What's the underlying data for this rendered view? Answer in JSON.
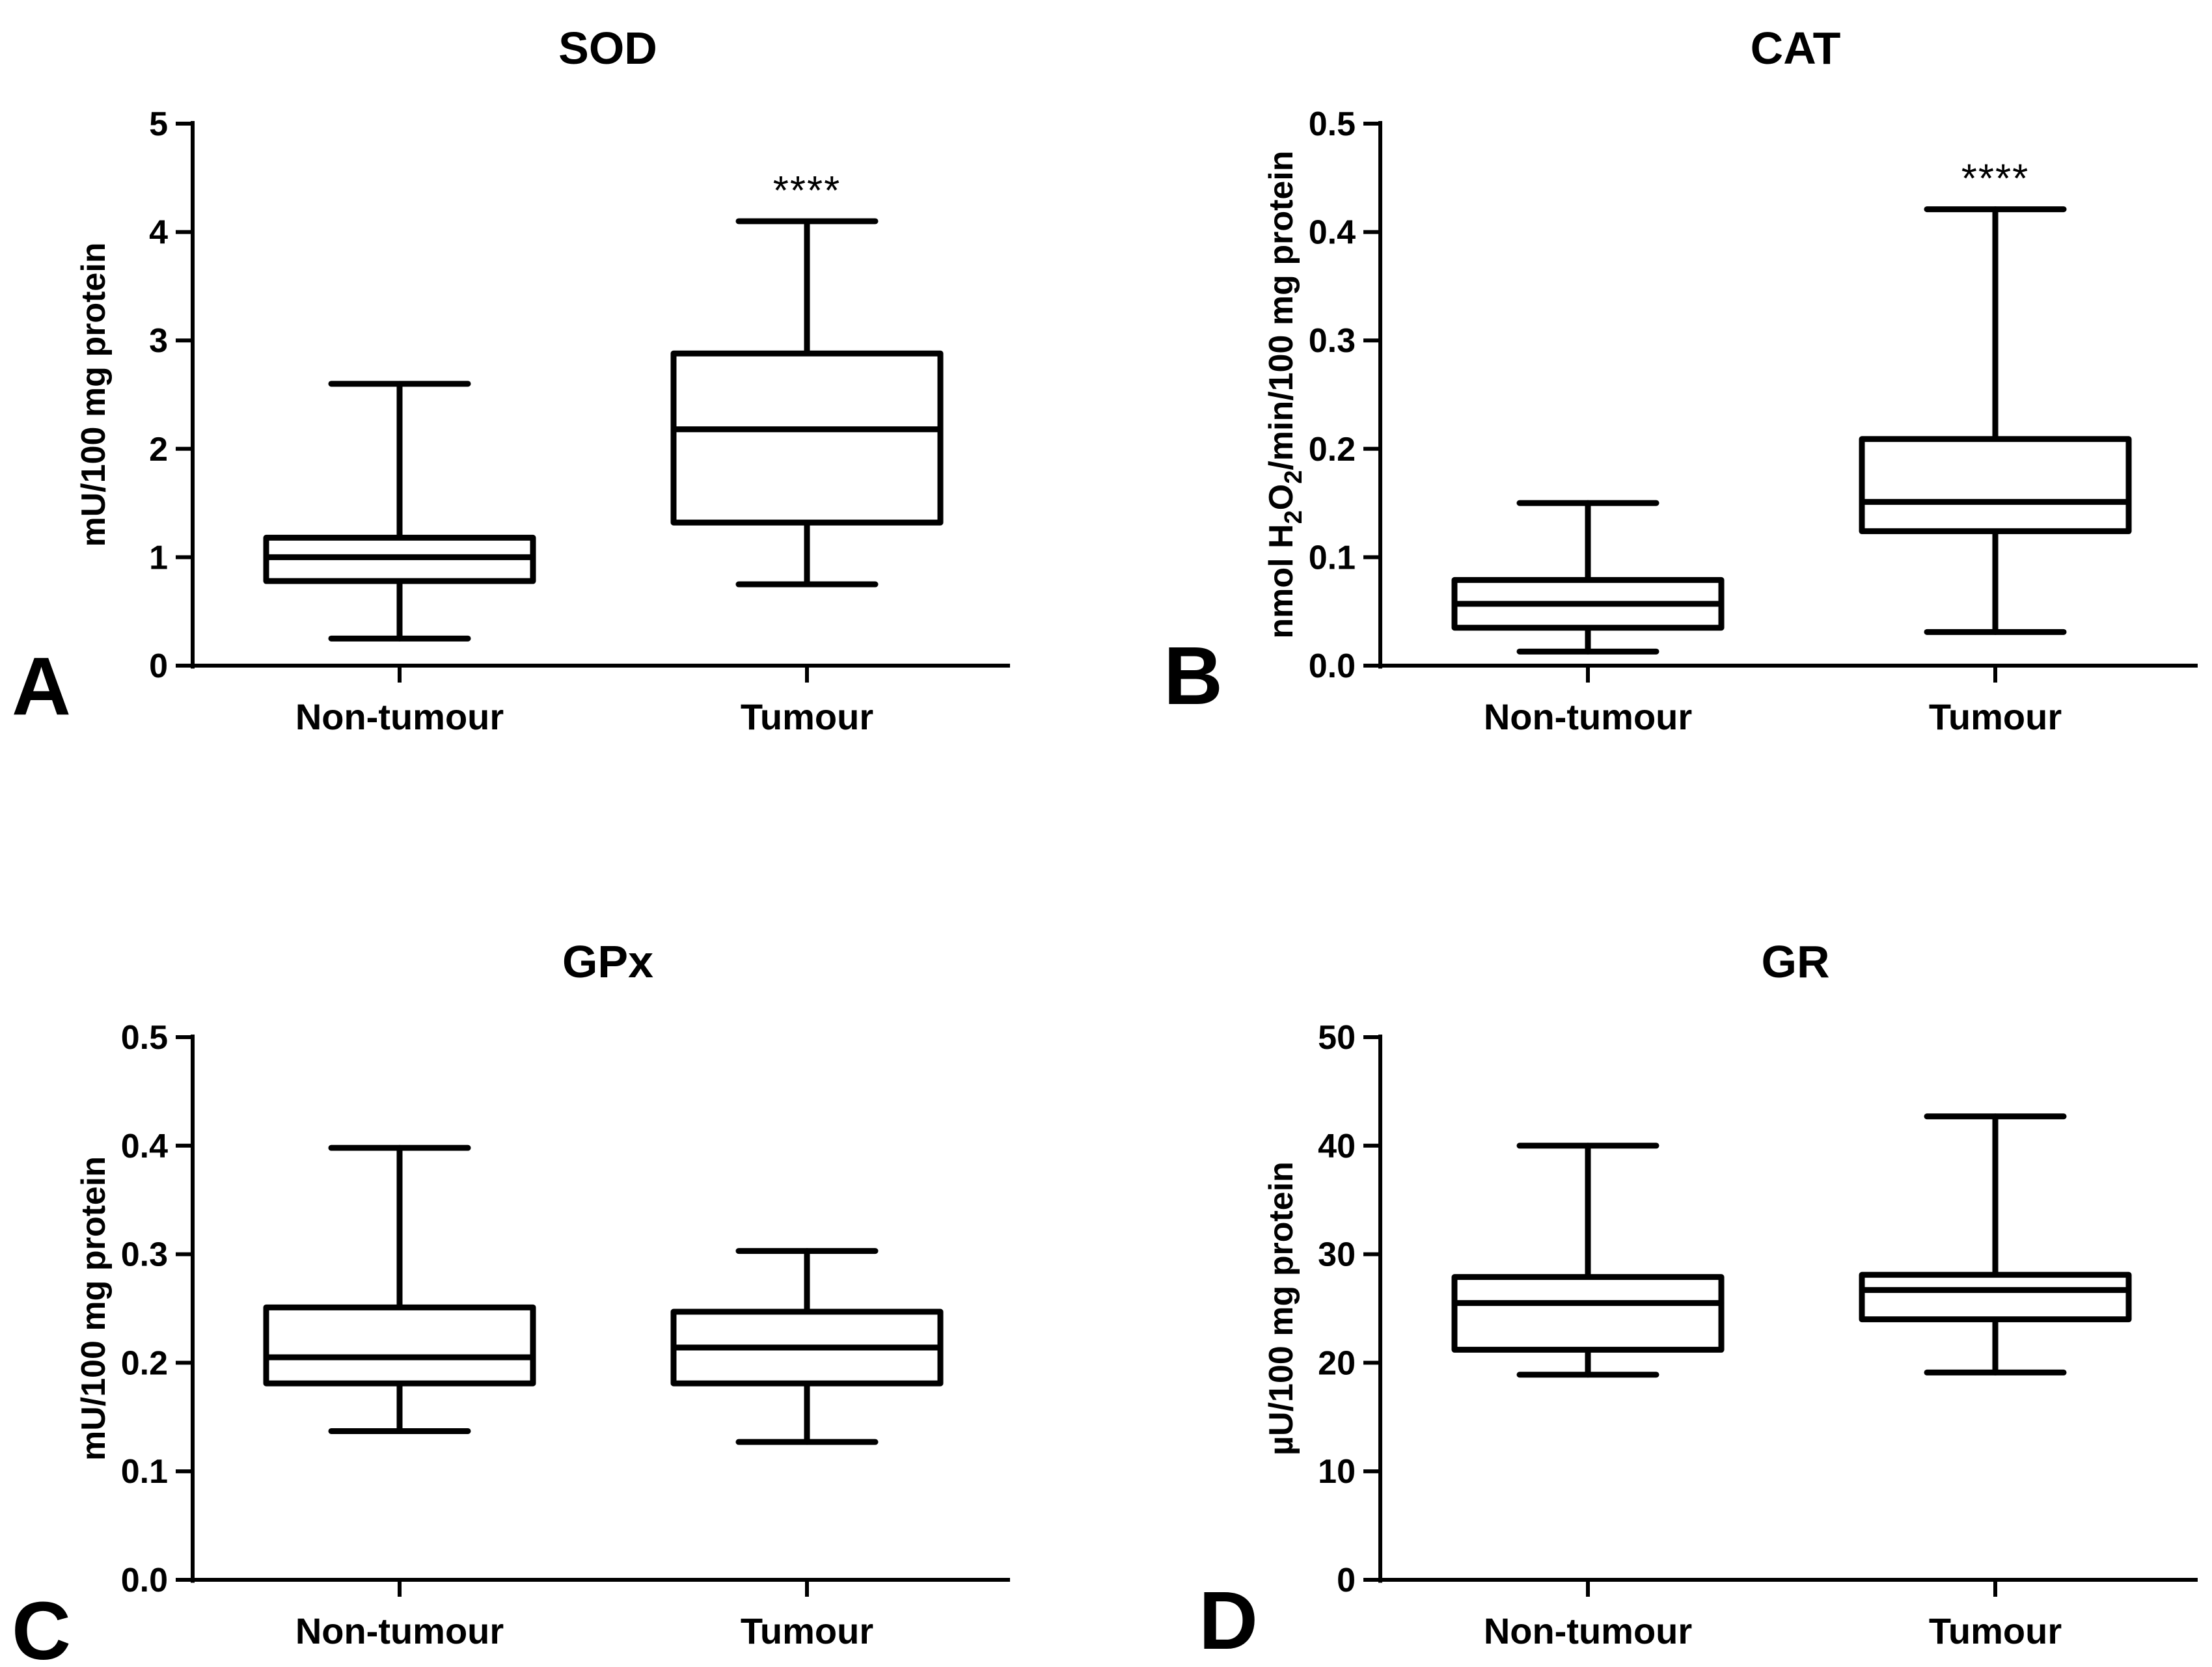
{
  "chart_data": [
    {
      "type": "box",
      "panel_letter": "A",
      "title": "SOD",
      "ylabel": "mU/100 mg protein",
      "ylim": [
        0,
        5
      ],
      "yticks": [
        "0",
        "1",
        "2",
        "3",
        "4",
        "5"
      ],
      "categories": [
        "Non-tumour",
        "Tumour"
      ],
      "boxes": [
        {
          "min": 0.25,
          "q1": 0.78,
          "median": 1.0,
          "q3": 1.18,
          "max": 2.6
        },
        {
          "min": 0.75,
          "q1": 1.32,
          "median": 2.18,
          "q3": 2.88,
          "max": 4.1
        }
      ],
      "annotations": [
        {
          "category": "Tumour",
          "text": "****"
        }
      ]
    },
    {
      "type": "box",
      "panel_letter": "B",
      "title": "CAT",
      "ylabel_parts": {
        "pre": "nmol H",
        "sub1": "2",
        "mid": "O",
        "sub2": "2",
        "post": "/min/100 mg protein"
      },
      "ylim": [
        0,
        0.5
      ],
      "yticks": [
        "0.0",
        "0.1",
        "0.2",
        "0.3",
        "0.4",
        "0.5"
      ],
      "categories": [
        "Non-tumour",
        "Tumour"
      ],
      "boxes": [
        {
          "min": 0.013,
          "q1": 0.035,
          "median": 0.057,
          "q3": 0.079,
          "max": 0.15
        },
        {
          "min": 0.031,
          "q1": 0.124,
          "median": 0.151,
          "q3": 0.209,
          "max": 0.421
        }
      ],
      "annotations": [
        {
          "category": "Tumour",
          "text": "****"
        }
      ]
    },
    {
      "type": "box",
      "panel_letter": "C",
      "title": "GPx",
      "ylabel": "mU/100 mg protein",
      "ylim": [
        0,
        0.5
      ],
      "yticks": [
        "0.0",
        "0.1",
        "0.2",
        "0.3",
        "0.4",
        "0.5"
      ],
      "categories": [
        "Non-tumour",
        "Tumour"
      ],
      "boxes": [
        {
          "min": 0.137,
          "q1": 0.181,
          "median": 0.205,
          "q3": 0.251,
          "max": 0.398
        },
        {
          "min": 0.127,
          "q1": 0.181,
          "median": 0.214,
          "q3": 0.247,
          "max": 0.303
        }
      ],
      "annotations": []
    },
    {
      "type": "box",
      "panel_letter": "D",
      "title": "GR",
      "ylabel": "µU/100 mg protein",
      "ylim": [
        0,
        50
      ],
      "yticks": [
        "0",
        "10",
        "20",
        "30",
        "40",
        "50"
      ],
      "categories": [
        "Non-tumour",
        "Tumour"
      ],
      "boxes": [
        {
          "min": 18.9,
          "q1": 21.2,
          "median": 25.5,
          "q3": 27.9,
          "max": 40.0
        },
        {
          "min": 19.1,
          "q1": 24.0,
          "median": 26.7,
          "q3": 28.1,
          "max": 42.7
        }
      ],
      "annotations": []
    }
  ]
}
